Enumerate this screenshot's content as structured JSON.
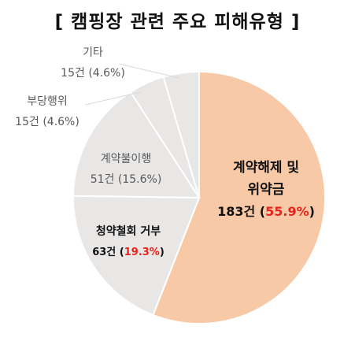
{
  "title": "[ 캠핑장 관련 주요 피해유형 ]",
  "chart_data": {
    "type": "pie",
    "slices": [
      {
        "label_lines": [
          "계약해제 및",
          "위약금"
        ],
        "count": 183,
        "count_text": "183건",
        "percent": 55.9,
        "percent_text": "55.9%",
        "color": "#f8c9a7",
        "style": "dark"
      },
      {
        "label_lines": [
          "청약철회 거부"
        ],
        "count": 63,
        "count_text": "63건",
        "percent": 19.3,
        "percent_text": "19.3%",
        "color": "#e9e6e6",
        "style": "dark"
      },
      {
        "label_lines": [
          "계약불이행"
        ],
        "count": 51,
        "count_text": "51건",
        "percent": 15.6,
        "percent_text": "15.6%",
        "color": "#e9e6e6",
        "style": "plain"
      },
      {
        "label_lines": [
          "부당행위"
        ],
        "count": 15,
        "count_text": "15건",
        "percent": 4.6,
        "percent_text": "4.6%",
        "color": "#e9e6e6",
        "style": "plain"
      },
      {
        "label_lines": [
          "기타"
        ],
        "count": 15,
        "count_text": "15건",
        "percent": 4.6,
        "percent_text": "4.6%",
        "color": "#e9e6e6",
        "style": "plain"
      }
    ],
    "highlight_color": "#e8231b"
  }
}
